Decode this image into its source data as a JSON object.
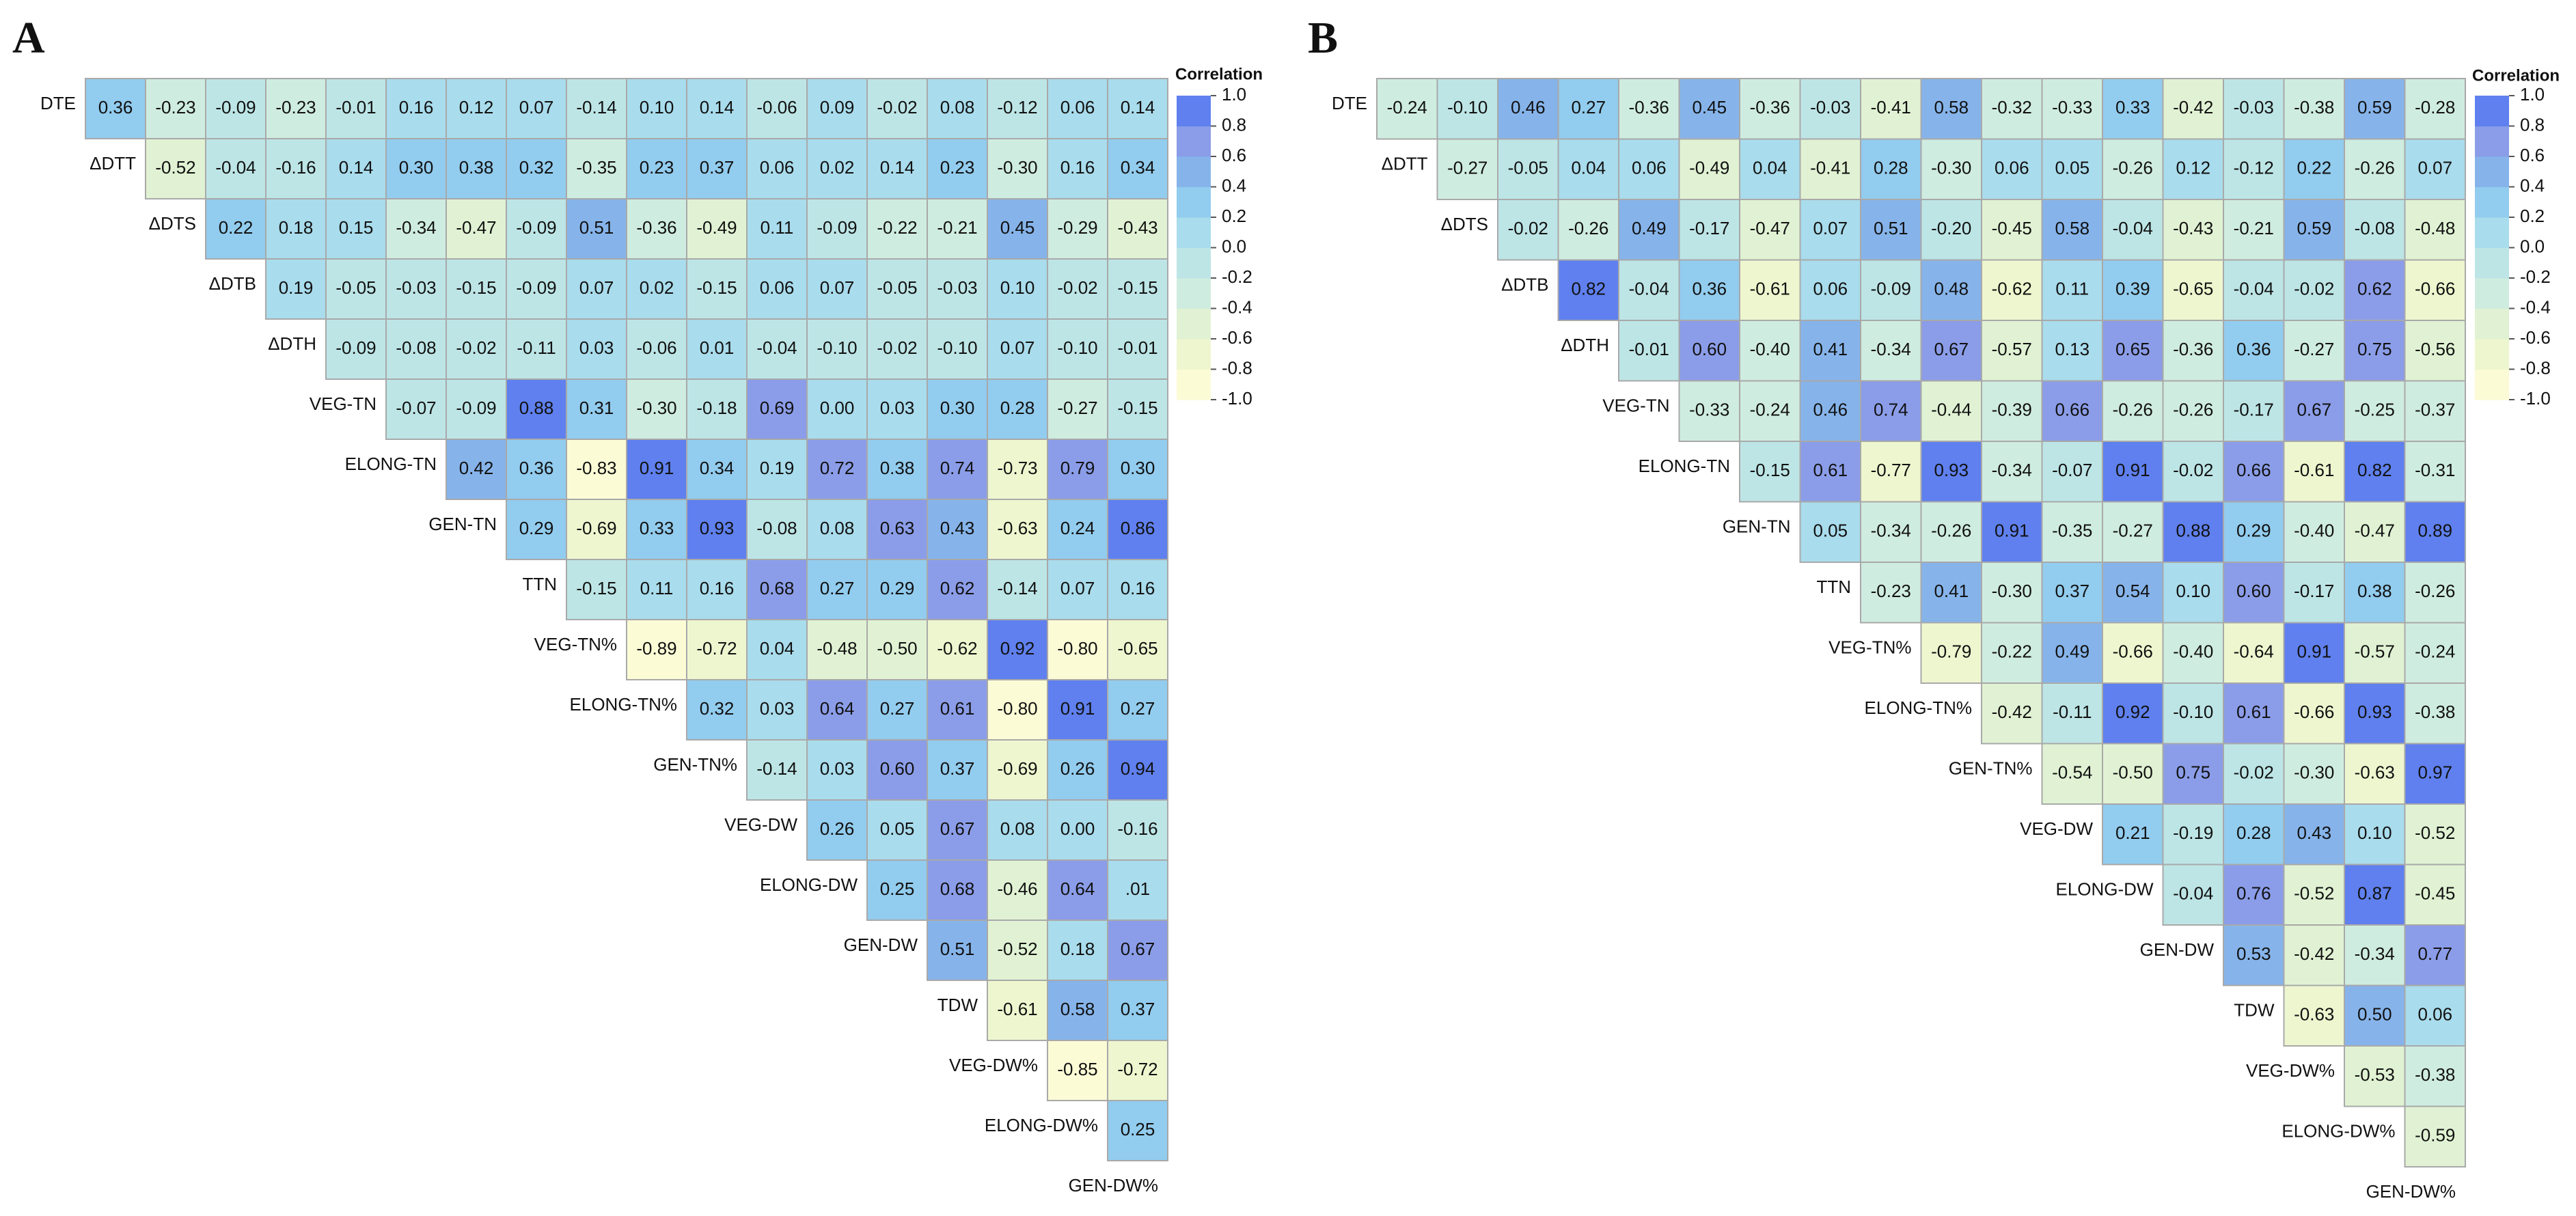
{
  "chart_data": [
    {
      "type": "heatmap",
      "title": "A",
      "colorbar_title": "Correlation",
      "variables": [
        "DTE",
        "ΔDTT",
        "ΔDTS",
        "ΔDTB",
        "ΔDTH",
        "VEG-TN",
        "ELONG-TN",
        "GEN-TN",
        "TTN",
        "VEG-TN%",
        "ELONG-TN%",
        "GEN-TN%",
        "VEG-DW",
        "ELONG-DW",
        "GEN-DW",
        "TDW",
        "VEG-DW%",
        "ELONG-DW%",
        "GEN-DW%"
      ],
      "rows": [
        {
          "values": [
            0.36,
            -0.23,
            -0.09,
            -0.23,
            -0.01,
            0.16,
            0.12,
            0.07,
            -0.14,
            0.1,
            0.14,
            -0.06,
            0.09,
            -0.02,
            0.08,
            -0.12,
            0.06,
            0.14
          ],
          "value_labels": [
            "0.36",
            "-0.23",
            "-0.09",
            "-0.23",
            "-0.01",
            "0.16",
            "0.12",
            "0.07",
            "-0.14",
            "0.10",
            "0.14",
            "-0.06",
            "0.09",
            "-0.02",
            "0.08",
            "-0.12",
            "0.06",
            "0.14"
          ]
        },
        {
          "values": [
            -0.52,
            -0.04,
            -0.16,
            0.14,
            0.3,
            0.38,
            0.32,
            -0.35,
            0.23,
            0.37,
            0.06,
            0.02,
            0.14,
            0.23,
            -0.3,
            0.16,
            0.34
          ],
          "value_labels": [
            "-0.52",
            "-0.04",
            "-0.16",
            "0.14",
            "0.30",
            "0.38",
            "0.32",
            "-0.35",
            "0.23",
            "0.37",
            "0.06",
            "0.02",
            "0.14",
            "0.23",
            "-0.30",
            "0.16",
            "0.34"
          ]
        },
        {
          "values": [
            0.22,
            0.18,
            0.15,
            -0.34,
            -0.47,
            -0.09,
            0.51,
            -0.36,
            -0.49,
            0.11,
            -0.09,
            -0.22,
            -0.21,
            0.45,
            -0.29,
            -0.43
          ],
          "value_labels": [
            "0.22",
            "0.18",
            "0.15",
            "-0.34",
            "-0.47",
            "-0.09",
            "0.51",
            "-0.36",
            "-0.49",
            "0.11",
            "-0.09",
            "-0.22",
            "-0.21",
            "0.45",
            "-0.29",
            "-0.43"
          ]
        },
        {
          "values": [
            0.19,
            -0.05,
            -0.03,
            -0.15,
            -0.09,
            0.07,
            0.02,
            -0.15,
            0.06,
            0.07,
            -0.05,
            -0.03,
            0.1,
            -0.02,
            -0.15
          ],
          "value_labels": [
            "0.19",
            "-0.05",
            "-0.03",
            "-0.15",
            "-0.09",
            "0.07",
            "0.02",
            "-0.15",
            "0.06",
            "0.07",
            "-0.05",
            "-0.03",
            "0.10",
            "-0.02",
            "-0.15"
          ]
        },
        {
          "values": [
            -0.09,
            -0.08,
            -0.02,
            -0.11,
            0.03,
            -0.06,
            0.01,
            -0.04,
            -0.1,
            -0.02,
            -0.1,
            0.07,
            -0.1,
            -0.01
          ],
          "value_labels": [
            "-0.09",
            "-0.08",
            "-0.02",
            "-0.11",
            "0.03",
            "-0.06",
            "0.01",
            "-0.04",
            "-0.10",
            "-0.02",
            "-0.10",
            "0.07",
            "-0.10",
            "-0.01"
          ]
        },
        {
          "values": [
            -0.07,
            -0.09,
            0.88,
            0.31,
            -0.3,
            -0.18,
            0.69,
            0,
            0.03,
            0.3,
            0.28,
            -0.27,
            -0.15
          ],
          "value_labels": [
            "-0.07",
            "-0.09",
            "0.88",
            "0.31",
            "-0.30",
            "-0.18",
            "0.69",
            "0.00",
            "0.03",
            "0.30",
            "0.28",
            "-0.27",
            "-0.15"
          ]
        },
        {
          "values": [
            0.42,
            0.36,
            -0.83,
            0.91,
            0.34,
            0.19,
            0.72,
            0.38,
            0.74,
            -0.73,
            0.79,
            0.3
          ],
          "value_labels": [
            "0.42",
            "0.36",
            "-0.83",
            "0.91",
            "0.34",
            "0.19",
            "0.72",
            "0.38",
            "0.74",
            "-0.73",
            "0.79",
            "0.30"
          ]
        },
        {
          "values": [
            0.29,
            -0.69,
            0.33,
            0.93,
            -0.08,
            0.08,
            0.63,
            0.43,
            -0.63,
            0.24,
            0.86
          ],
          "value_labels": [
            "0.29",
            "-0.69",
            "0.33",
            "0.93",
            "-0.08",
            "0.08",
            "0.63",
            "0.43",
            "-0.63",
            "0.24",
            "0.86"
          ]
        },
        {
          "values": [
            -0.15,
            0.11,
            0.16,
            0.68,
            0.27,
            0.29,
            0.62,
            -0.14,
            0.07,
            0.16
          ],
          "value_labels": [
            "-0.15",
            "0.11",
            "0.16",
            "0.68",
            "0.27",
            "0.29",
            "0.62",
            "-0.14",
            "0.07",
            "0.16"
          ]
        },
        {
          "values": [
            -0.89,
            -0.72,
            0.04,
            -0.48,
            -0.5,
            -0.62,
            0.92,
            -0.8,
            -0.65
          ],
          "value_labels": [
            "-0.89",
            "-0.72",
            "0.04",
            "-0.48",
            "-0.50",
            "-0.62",
            "0.92",
            "-0.80",
            "-0.65"
          ]
        },
        {
          "values": [
            0.32,
            0.03,
            0.64,
            0.27,
            0.61,
            -0.8,
            0.91,
            0.27
          ],
          "value_labels": [
            "0.32",
            "0.03",
            "0.64",
            "0.27",
            "0.61",
            "-0.80",
            "0.91",
            "0.27"
          ]
        },
        {
          "values": [
            -0.14,
            0.03,
            0.6,
            0.37,
            -0.69,
            0.26,
            0.94
          ],
          "value_labels": [
            "-0.14",
            "0.03",
            "0.60",
            "0.37",
            "-0.69",
            "0.26",
            "0.94"
          ]
        },
        {
          "values": [
            0.26,
            0.05,
            0.67,
            0.08,
            0,
            -0.16
          ],
          "value_labels": [
            "0.26",
            "0.05",
            "0.67",
            "0.08",
            "0.00",
            "-0.16"
          ]
        },
        {
          "values": [
            0.25,
            0.68,
            -0.46,
            0.64,
            0.01
          ],
          "value_labels": [
            "0.25",
            "0.68",
            "-0.46",
            "0.64",
            ".01"
          ]
        },
        {
          "values": [
            0.51,
            -0.52,
            0.18,
            0.67
          ],
          "value_labels": [
            "0.51",
            "-0.52",
            "0.18",
            "0.67"
          ]
        },
        {
          "values": [
            -0.61,
            0.58,
            0.37
          ],
          "value_labels": [
            "-0.61",
            "0.58",
            "0.37"
          ]
        },
        {
          "values": [
            -0.85,
            -0.72
          ],
          "value_labels": [
            "-0.85",
            "-0.72"
          ]
        },
        {
          "values": [
            0.25
          ],
          "value_labels": [
            "0.25"
          ]
        }
      ],
      "zlim": [
        -1,
        1
      ],
      "zticks": [
        {
          "value": 1,
          "label": "1.0"
        },
        0.8,
        0.6,
        0.4,
        0.2,
        {
          "value": 0,
          "label": "0.0"
        },
        -0.2,
        -0.4,
        -0.6,
        -0.8,
        {
          "value": -1,
          "label": "-1.0"
        }
      ],
      "colors": [
        "#fbfbd6",
        "#eef6cf",
        "#e0f2d3",
        "#cfece0",
        "#bde5e6",
        "#a9dcec",
        "#92ccee",
        "#86b4ea",
        "#8b9de8",
        "#5f80ee"
      ]
    },
    {
      "type": "heatmap",
      "title": "B",
      "colorbar_title": "Correlation",
      "variables": [
        "DTE",
        "ΔDTT",
        "ΔDTS",
        "ΔDTB",
        "ΔDTH",
        "VEG-TN",
        "ELONG-TN",
        "GEN-TN",
        "TTN",
        "VEG-TN%",
        "ELONG-TN%",
        "GEN-TN%",
        "VEG-DW",
        "ELONG-DW",
        "GEN-DW",
        "TDW",
        "VEG-DW%",
        "ELONG-DW%",
        "GEN-DW%"
      ],
      "rows": [
        {
          "values": [
            -0.24,
            -0.1,
            0.46,
            0.27,
            -0.36,
            0.45,
            -0.36,
            -0.03,
            -0.41,
            0.58,
            -0.32,
            -0.33,
            0.33,
            -0.42,
            -0.03,
            -0.38,
            0.59,
            -0.28
          ],
          "value_labels": [
            "-0.24",
            "-0.10",
            "0.46",
            "0.27",
            "-0.36",
            "0.45",
            "-0.36",
            "-0.03",
            "-0.41",
            "0.58",
            "-0.32",
            "-0.33",
            "0.33",
            "-0.42",
            "-0.03",
            "-0.38",
            "0.59",
            "-0.28"
          ]
        },
        {
          "values": [
            -0.27,
            -0.05,
            0.04,
            0.06,
            -0.49,
            0.04,
            -0.41,
            0.28,
            -0.3,
            0.06,
            0.05,
            -0.26,
            0.12,
            -0.12,
            0.22,
            -0.26,
            0.07
          ],
          "value_labels": [
            "-0.27",
            "-0.05",
            "0.04",
            "0.06",
            "-0.49",
            "0.04",
            "-0.41",
            "0.28",
            "-0.30",
            "0.06",
            "0.05",
            "-0.26",
            "0.12",
            "-0.12",
            "0.22",
            "-0.26",
            "0.07"
          ]
        },
        {
          "values": [
            -0.02,
            -0.26,
            0.49,
            -0.17,
            -0.47,
            0.07,
            0.51,
            -0.2,
            -0.45,
            0.58,
            -0.04,
            -0.43,
            -0.21,
            0.59,
            -0.08,
            -0.48
          ],
          "value_labels": [
            "-0.02",
            "-0.26",
            "0.49",
            "-0.17",
            "-0.47",
            "0.07",
            "0.51",
            "-0.20",
            "-0.45",
            "0.58",
            "-0.04",
            "-0.43",
            "-0.21",
            "0.59",
            "-0.08",
            "-0.48"
          ]
        },
        {
          "values": [
            0.82,
            -0.04,
            0.36,
            -0.61,
            0.06,
            -0.09,
            0.48,
            -0.62,
            0.11,
            0.39,
            -0.65,
            -0.04,
            -0.02,
            0.62,
            -0.66
          ],
          "value_labels": [
            "0.82",
            "-0.04",
            "0.36",
            "-0.61",
            "0.06",
            "-0.09",
            "0.48",
            "-0.62",
            "0.11",
            "0.39",
            "-0.65",
            "-0.04",
            "-0.02",
            "0.62",
            "-0.66"
          ]
        },
        {
          "values": [
            -0.01,
            0.6,
            -0.4,
            0.41,
            -0.34,
            0.67,
            -0.57,
            0.13,
            0.65,
            -0.36,
            0.36,
            -0.27,
            0.75,
            -0.56
          ],
          "value_labels": [
            "-0.01",
            "0.60",
            "-0.40",
            "0.41",
            "-0.34",
            "0.67",
            "-0.57",
            "0.13",
            "0.65",
            "-0.36",
            "0.36",
            "-0.27",
            "0.75",
            "-0.56"
          ]
        },
        {
          "values": [
            -0.33,
            -0.24,
            0.46,
            0.74,
            -0.44,
            -0.39,
            0.66,
            -0.26,
            -0.26,
            -0.17,
            0.67,
            -0.25,
            -0.37
          ],
          "value_labels": [
            "-0.33",
            "-0.24",
            "0.46",
            "0.74",
            "-0.44",
            "-0.39",
            "0.66",
            "-0.26",
            "-0.26",
            "-0.17",
            "0.67",
            "-0.25",
            "-0.37"
          ]
        },
        {
          "values": [
            -0.15,
            0.61,
            -0.77,
            0.93,
            -0.34,
            -0.07,
            0.91,
            -0.02,
            0.66,
            -0.61,
            0.82,
            -0.31
          ],
          "value_labels": [
            "-0.15",
            "0.61",
            "-0.77",
            "0.93",
            "-0.34",
            "-0.07",
            "0.91",
            "-0.02",
            "0.66",
            "-0.61",
            "0.82",
            "-0.31"
          ]
        },
        {
          "values": [
            0.05,
            -0.34,
            -0.26,
            0.91,
            -0.35,
            -0.27,
            0.88,
            0.29,
            -0.4,
            -0.47,
            0.89
          ],
          "value_labels": [
            "0.05",
            "-0.34",
            "-0.26",
            "0.91",
            "-0.35",
            "-0.27",
            "0.88",
            "0.29",
            "-0.40",
            "-0.47",
            "0.89"
          ]
        },
        {
          "values": [
            -0.23,
            0.41,
            -0.3,
            0.37,
            0.54,
            0.1,
            0.6,
            -0.17,
            0.38,
            -0.26
          ],
          "value_labels": [
            "-0.23",
            "0.41",
            "-0.30",
            "0.37",
            "0.54",
            "0.10",
            "0.60",
            "-0.17",
            "0.38",
            "-0.26"
          ]
        },
        {
          "values": [
            -0.79,
            -0.22,
            0.49,
            -0.66,
            -0.4,
            -0.64,
            0.91,
            -0.57,
            -0.24
          ],
          "value_labels": [
            "-0.79",
            "-0.22",
            "0.49",
            "-0.66",
            "-0.40",
            "-0.64",
            "0.91",
            "-0.57",
            "-0.24"
          ]
        },
        {
          "values": [
            -0.42,
            -0.11,
            0.92,
            -0.1,
            0.61,
            -0.66,
            0.93,
            -0.38
          ],
          "value_labels": [
            "-0.42",
            "-0.11",
            "0.92",
            "-0.10",
            "0.61",
            "-0.66",
            "0.93",
            "-0.38"
          ]
        },
        {
          "values": [
            -0.54,
            -0.5,
            0.75,
            -0.02,
            -0.3,
            -0.63,
            0.97
          ],
          "value_labels": [
            "-0.54",
            "-0.50",
            "0.75",
            "-0.02",
            "-0.30",
            "-0.63",
            "0.97"
          ]
        },
        {
          "values": [
            0.21,
            -0.19,
            0.28,
            0.43,
            0.1,
            -0.52
          ],
          "value_labels": [
            "0.21",
            "-0.19",
            "0.28",
            "0.43",
            "0.10",
            "-0.52"
          ]
        },
        {
          "values": [
            -0.04,
            0.76,
            -0.52,
            0.87,
            -0.45
          ],
          "value_labels": [
            "-0.04",
            "0.76",
            "-0.52",
            "0.87",
            "-0.45"
          ]
        },
        {
          "values": [
            0.53,
            -0.42,
            -0.34,
            0.77
          ],
          "value_labels": [
            "0.53",
            "-0.42",
            "-0.34",
            "0.77"
          ]
        },
        {
          "values": [
            -0.63,
            0.5,
            0.06
          ],
          "value_labels": [
            "-0.63",
            "0.50",
            "0.06"
          ]
        },
        {
          "values": [
            -0.53,
            -0.38
          ],
          "value_labels": [
            "-0.53",
            "-0.38"
          ]
        },
        {
          "values": [
            -0.59
          ],
          "value_labels": [
            "-0.59"
          ]
        }
      ],
      "zlim": [
        -1,
        1
      ],
      "zticks": [
        {
          "value": 1,
          "label": "1.0"
        },
        0.8,
        0.6,
        0.4,
        0.2,
        {
          "value": 0,
          "label": "0.0"
        },
        -0.2,
        -0.4,
        -0.6,
        -0.8,
        {
          "value": -1,
          "label": "-1.0"
        }
      ],
      "colors": [
        "#fbfbd6",
        "#eef6cf",
        "#e0f2d3",
        "#cfece0",
        "#bde5e6",
        "#a9dcec",
        "#92ccee",
        "#86b4ea",
        "#8b9de8",
        "#5f80ee"
      ]
    }
  ]
}
